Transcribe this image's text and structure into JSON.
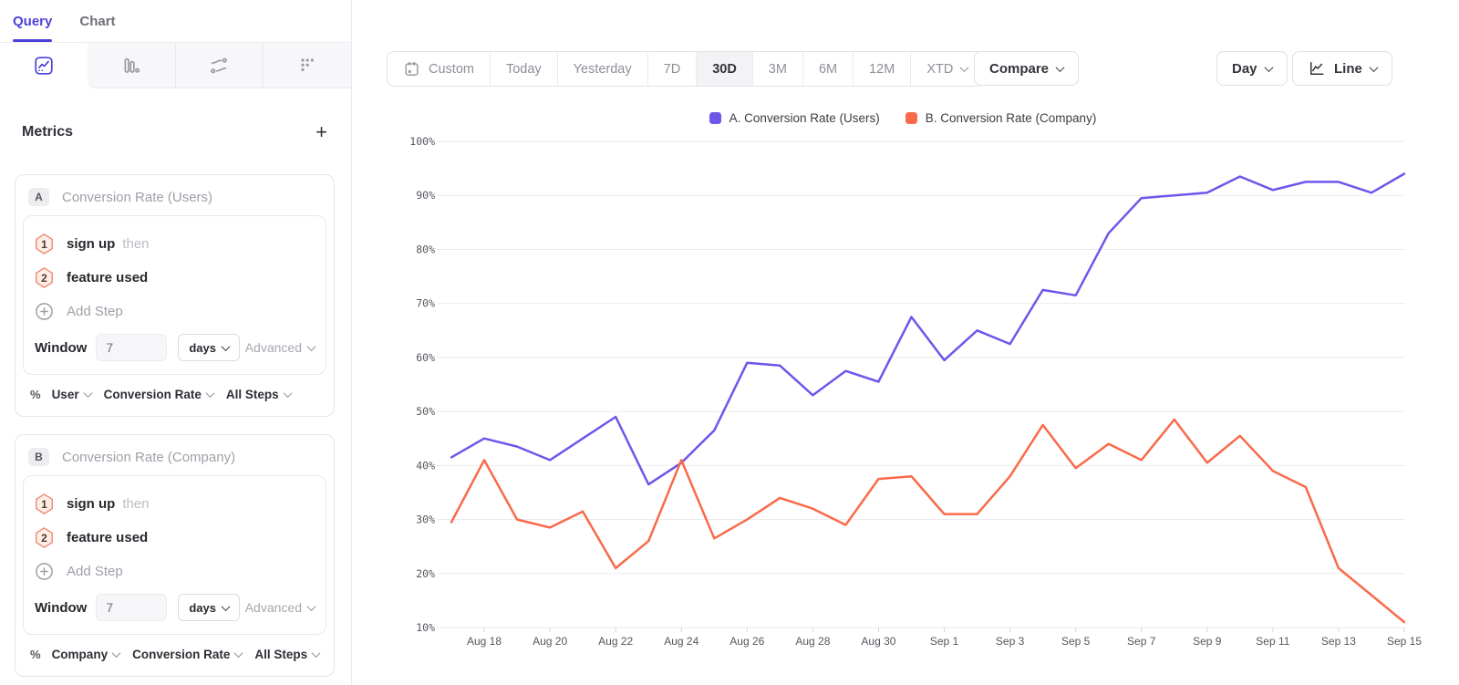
{
  "sidebar": {
    "tabs": [
      {
        "label": "Query",
        "active": true
      },
      {
        "label": "Chart",
        "active": false
      }
    ],
    "toolbar_icons": [
      "insights-icon",
      "funnel-icon",
      "flows-icon",
      "retention-icon"
    ],
    "metrics": {
      "title": "Metrics",
      "add_icon": "+"
    },
    "cards": [
      {
        "badge": "A",
        "title": "Conversion Rate (Users)",
        "steps": [
          {
            "num": "1",
            "label": "sign up",
            "suffix": "then"
          },
          {
            "num": "2",
            "label": "feature used",
            "suffix": ""
          }
        ],
        "add_step": "Add Step",
        "window": {
          "label": "Window",
          "value": "7",
          "unit": "days",
          "advanced": "Advanced"
        },
        "footer": {
          "percent": "%",
          "entity": "User",
          "measure": "Conversion Rate",
          "steps": "All Steps"
        }
      },
      {
        "badge": "B",
        "title": "Conversion Rate (Company)",
        "steps": [
          {
            "num": "1",
            "label": "sign up",
            "suffix": "then"
          },
          {
            "num": "2",
            "label": "feature used",
            "suffix": ""
          }
        ],
        "add_step": "Add Step",
        "window": {
          "label": "Window",
          "value": "7",
          "unit": "days",
          "advanced": "Advanced"
        },
        "footer": {
          "percent": "%",
          "entity": "Company",
          "measure": "Conversion Rate",
          "steps": "All Steps"
        }
      }
    ]
  },
  "toolbar": {
    "ranges": [
      {
        "label": "Custom",
        "icon": "calendar-icon"
      },
      {
        "label": "Today"
      },
      {
        "label": "Yesterday"
      },
      {
        "label": "7D"
      },
      {
        "label": "30D",
        "active": true
      },
      {
        "label": "3M"
      },
      {
        "label": "6M"
      },
      {
        "label": "12M"
      },
      {
        "label": "XTD",
        "chevron": true
      }
    ],
    "compare": "Compare",
    "granularity": "Day",
    "chart_type": "Line"
  },
  "legend": {
    "items": [
      {
        "label": "A. Conversion Rate (Users)",
        "color": "#6f56eb"
      },
      {
        "label": "B. Conversion Rate (Company)",
        "color": "#f96a4a"
      }
    ]
  },
  "chart_data": {
    "type": "line",
    "title": "",
    "xlabel": "",
    "ylabel": "",
    "ylabel_format": "percent",
    "ylim": [
      10,
      100
    ],
    "yticks": [
      10,
      20,
      30,
      40,
      50,
      60,
      70,
      80,
      90,
      100
    ],
    "grid": true,
    "legend_position": "top",
    "x": [
      "Aug 17",
      "Aug 18",
      "Aug 19",
      "Aug 20",
      "Aug 21",
      "Aug 22",
      "Aug 23",
      "Aug 24",
      "Aug 25",
      "Aug 26",
      "Aug 27",
      "Aug 28",
      "Aug 29",
      "Aug 30",
      "Aug 31",
      "Sep 1",
      "Sep 2",
      "Sep 3",
      "Sep 4",
      "Sep 5",
      "Sep 6",
      "Sep 7",
      "Sep 8",
      "Sep 9",
      "Sep 10",
      "Sep 11",
      "Sep 12",
      "Sep 13",
      "Sep 14",
      "Sep 15"
    ],
    "xtick_labels": [
      "Aug 18",
      "Aug 20",
      "Aug 22",
      "Aug 24",
      "Aug 26",
      "Aug 28",
      "Aug 30",
      "Sep 1",
      "Sep 3",
      "Sep 5",
      "Sep 7",
      "Sep 9",
      "Sep 11",
      "Sep 13",
      "Sep 15"
    ],
    "series": [
      {
        "name": "A. Conversion Rate (Users)",
        "color": "#6f56eb",
        "values": [
          41.5,
          45,
          43.5,
          41,
          45,
          49,
          36.5,
          40.5,
          46.5,
          59,
          58.5,
          53,
          57.5,
          55.5,
          67.5,
          59.5,
          65,
          62.5,
          72.5,
          71.5,
          83,
          89.5,
          90,
          90.5,
          93.5,
          91,
          92.5,
          92.5,
          90.5,
          94
        ]
      },
      {
        "name": "B. Conversion Rate (Company)",
        "color": "#f96a4a",
        "values": [
          29.5,
          41,
          30,
          28.5,
          31.5,
          21,
          26,
          41,
          26.5,
          30,
          34,
          32,
          29,
          37.5,
          38,
          31,
          31,
          38,
          47.5,
          39.5,
          44,
          41,
          48.5,
          40.5,
          45.5,
          39,
          36,
          21,
          16,
          11
        ]
      }
    ]
  }
}
